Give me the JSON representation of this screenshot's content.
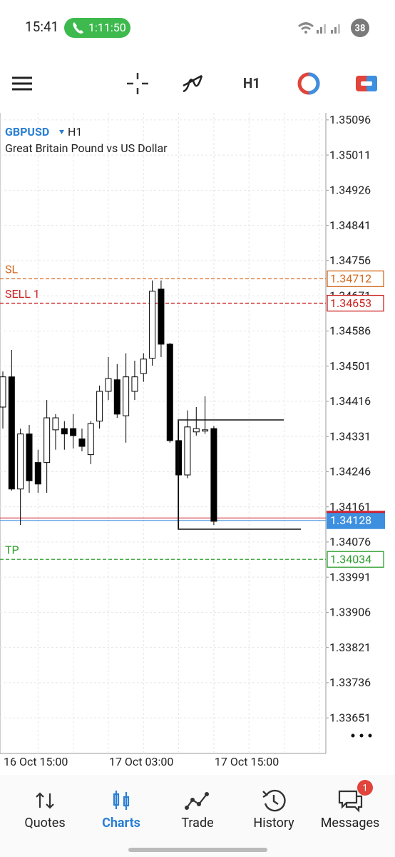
{
  "status_bar": {
    "time": "15:41",
    "call_timer": "1:11:50",
    "battery": "38"
  },
  "toolbar": {
    "timeframe": "H1"
  },
  "chart_data": {
    "type": "candlestick",
    "symbol": "GBPUSD",
    "timeframe": "H1",
    "description": "Great Britain Pound vs US Dollar",
    "categories": [
      "16 Oct 15:00",
      null,
      null,
      null,
      null,
      null,
      null,
      null,
      null,
      null,
      null,
      null,
      "17 Oct 03:00",
      null,
      null,
      null,
      null,
      null,
      null,
      null,
      null,
      null,
      null,
      null,
      "17 Oct 15:00"
    ],
    "open": [
      1.34402,
      1.34475,
      1.34204,
      1.34337,
      1.34268,
      1.34268,
      1.34347,
      1.3435,
      1.3435,
      1.34325,
      1.34287,
      1.34368,
      1.3444,
      1.34468,
      1.34381,
      1.3444,
      1.34483,
      1.3452,
      1.34687,
      1.34554,
      1.34321,
      1.34238,
      1.34342,
      1.34344,
      1.3435
    ],
    "high": [
      1.34488,
      1.3454,
      1.3435,
      1.34359,
      1.34299,
      1.34419,
      1.34385,
      1.34368,
      1.34385,
      1.3435,
      1.34368,
      1.34454,
      1.34523,
      1.34506,
      1.34532,
      1.34514,
      1.34532,
      1.34708,
      1.34708,
      1.34557,
      1.34368,
      1.34394,
      1.34402,
      1.34428,
      1.34356
    ],
    "low": [
      1.3435,
      1.342,
      1.34117,
      1.34195,
      1.34195,
      1.34195,
      1.34299,
      1.34299,
      1.34302,
      1.34295,
      1.34264,
      1.3435,
      1.34419,
      1.34376,
      1.34316,
      1.34419,
      1.34463,
      1.34502,
      1.34523,
      1.34316,
      1.34109,
      1.3423,
      1.34333,
      1.34337,
      1.34117
    ],
    "close": [
      1.34475,
      1.34204,
      1.34337,
      1.34224,
      1.34216,
      1.34376,
      1.34376,
      1.34337,
      1.34333,
      1.34307,
      1.34362,
      1.3444,
      1.34471,
      1.34385,
      1.34475,
      1.34475,
      1.34518,
      1.34682,
      1.34554,
      1.34321,
      1.34238,
      1.34354,
      1.3435,
      1.34347,
      1.34126
    ],
    "up_color": "#ffffff",
    "down_color": "#000000",
    "ylim": [
      1.33565,
      1.35113
    ],
    "yticks": [
      1.35096,
      1.35011,
      1.34926,
      1.34841,
      1.34756,
      1.34671,
      1.34586,
      1.34501,
      1.34416,
      1.34331,
      1.34246,
      1.34161,
      1.34076,
      1.33991,
      1.33906,
      1.33821,
      1.33736,
      1.33651
    ],
    "grid": true,
    "levels": [
      {
        "name": "SL",
        "value": 1.34712,
        "color": "#d2691e"
      },
      {
        "name": "SELL 1",
        "value": 1.34653,
        "color": "#cc2222"
      },
      {
        "name": "TP",
        "value": 1.34034,
        "color": "#2e9e2e"
      }
    ],
    "current_price": 1.34128,
    "current_price_color": "#3d8fe0",
    "ask_line": 1.34134,
    "ask_color": "#d02030"
  },
  "nav": {
    "items": [
      "Quotes",
      "Charts",
      "Trade",
      "History",
      "Messages"
    ],
    "active": 1,
    "badge": "1"
  }
}
